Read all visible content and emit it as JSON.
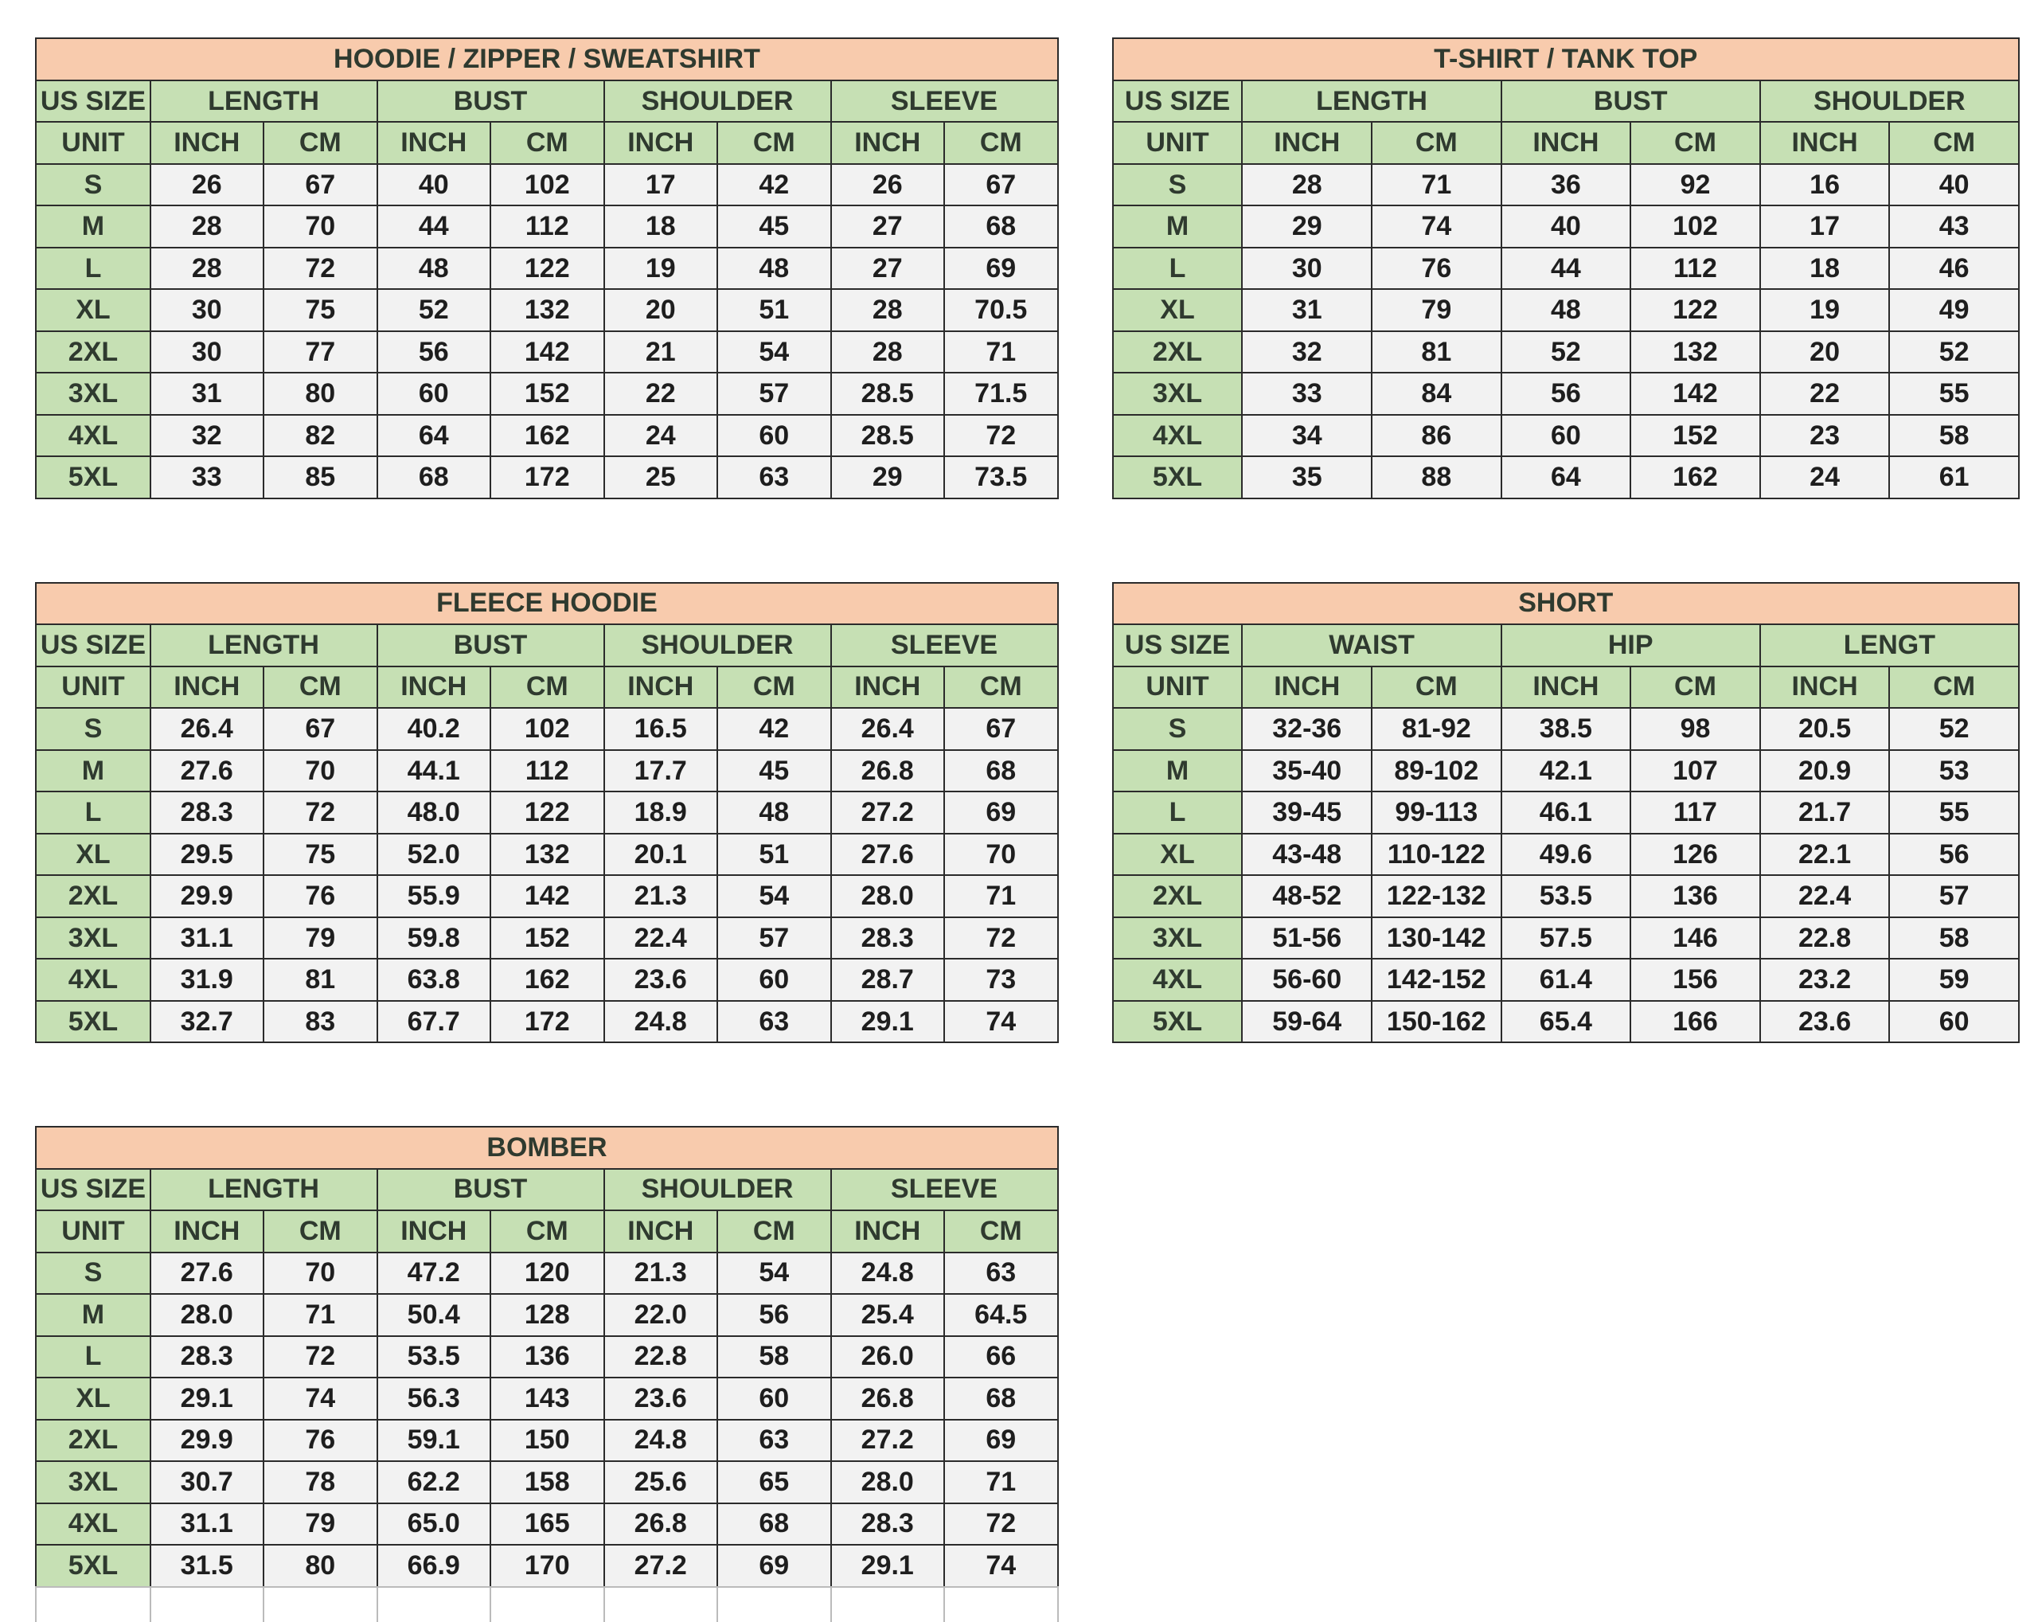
{
  "tables": [
    {
      "title": "HOODIE / ZIPPER / SWEATSHIRT",
      "size_header": "US SIZE",
      "unit_header": "UNIT",
      "groups": [
        "LENGTH",
        "BUST",
        "SHOULDER",
        "SLEEVE"
      ],
      "units": [
        "INCH",
        "CM",
        "INCH",
        "CM",
        "INCH",
        "CM",
        "INCH",
        "CM"
      ],
      "rows": [
        [
          "S",
          "26",
          "67",
          "40",
          "102",
          "17",
          "42",
          "26",
          "67"
        ],
        [
          "M",
          "28",
          "70",
          "44",
          "112",
          "18",
          "45",
          "27",
          "68"
        ],
        [
          "L",
          "28",
          "72",
          "48",
          "122",
          "19",
          "48",
          "27",
          "69"
        ],
        [
          "XL",
          "30",
          "75",
          "52",
          "132",
          "20",
          "51",
          "28",
          "70.5"
        ],
        [
          "2XL",
          "30",
          "77",
          "56",
          "142",
          "21",
          "54",
          "28",
          "71"
        ],
        [
          "3XL",
          "31",
          "80",
          "60",
          "152",
          "22",
          "57",
          "28.5",
          "71.5"
        ],
        [
          "4XL",
          "32",
          "82",
          "64",
          "162",
          "24",
          "60",
          "28.5",
          "72"
        ],
        [
          "5XL",
          "33",
          "85",
          "68",
          "172",
          "25",
          "63",
          "29",
          "73.5"
        ]
      ]
    },
    {
      "title": "T-SHIRT / TANK TOP",
      "size_header": "US SIZE",
      "unit_header": "UNIT",
      "groups": [
        "LENGTH",
        "BUST",
        "SHOULDER"
      ],
      "units": [
        "INCH",
        "CM",
        "INCH",
        "CM",
        "INCH",
        "CM"
      ],
      "rows": [
        [
          "S",
          "28",
          "71",
          "36",
          "92",
          "16",
          "40"
        ],
        [
          "M",
          "29",
          "74",
          "40",
          "102",
          "17",
          "43"
        ],
        [
          "L",
          "30",
          "76",
          "44",
          "112",
          "18",
          "46"
        ],
        [
          "XL",
          "31",
          "79",
          "48",
          "122",
          "19",
          "49"
        ],
        [
          "2XL",
          "32",
          "81",
          "52",
          "132",
          "20",
          "52"
        ],
        [
          "3XL",
          "33",
          "84",
          "56",
          "142",
          "22",
          "55"
        ],
        [
          "4XL",
          "34",
          "86",
          "60",
          "152",
          "23",
          "58"
        ],
        [
          "5XL",
          "35",
          "88",
          "64",
          "162",
          "24",
          "61"
        ]
      ]
    },
    {
      "title": "FLEECE HOODIE",
      "size_header": "US SIZE",
      "unit_header": "UNIT",
      "groups": [
        "LENGTH",
        "BUST",
        "SHOULDER",
        "SLEEVE"
      ],
      "units": [
        "INCH",
        "CM",
        "INCH",
        "CM",
        "INCH",
        "CM",
        "INCH",
        "CM"
      ],
      "rows": [
        [
          "S",
          "26.4",
          "67",
          "40.2",
          "102",
          "16.5",
          "42",
          "26.4",
          "67"
        ],
        [
          "M",
          "27.6",
          "70",
          "44.1",
          "112",
          "17.7",
          "45",
          "26.8",
          "68"
        ],
        [
          "L",
          "28.3",
          "72",
          "48.0",
          "122",
          "18.9",
          "48",
          "27.2",
          "69"
        ],
        [
          "XL",
          "29.5",
          "75",
          "52.0",
          "132",
          "20.1",
          "51",
          "27.6",
          "70"
        ],
        [
          "2XL",
          "29.9",
          "76",
          "55.9",
          "142",
          "21.3",
          "54",
          "28.0",
          "71"
        ],
        [
          "3XL",
          "31.1",
          "79",
          "59.8",
          "152",
          "22.4",
          "57",
          "28.3",
          "72"
        ],
        [
          "4XL",
          "31.9",
          "81",
          "63.8",
          "162",
          "23.6",
          "60",
          "28.7",
          "73"
        ],
        [
          "5XL",
          "32.7",
          "83",
          "67.7",
          "172",
          "24.8",
          "63",
          "29.1",
          "74"
        ]
      ]
    },
    {
      "title": "SHORT",
      "size_header": "US SIZE",
      "unit_header": "UNIT",
      "groups": [
        "WAIST",
        "HIP",
        "LENGT"
      ],
      "units": [
        "INCH",
        "CM",
        "INCH",
        "CM",
        "INCH",
        "CM"
      ],
      "rows": [
        [
          "S",
          "32-36",
          "81-92",
          "38.5",
          "98",
          "20.5",
          "52"
        ],
        [
          "M",
          "35-40",
          "89-102",
          "42.1",
          "107",
          "20.9",
          "53"
        ],
        [
          "L",
          "39-45",
          "99-113",
          "46.1",
          "117",
          "21.7",
          "55"
        ],
        [
          "XL",
          "43-48",
          "110-122",
          "49.6",
          "126",
          "22.1",
          "56"
        ],
        [
          "2XL",
          "48-52",
          "122-132",
          "53.5",
          "136",
          "22.4",
          "57"
        ],
        [
          "3XL",
          "51-56",
          "130-142",
          "57.5",
          "146",
          "22.8",
          "58"
        ],
        [
          "4XL",
          "56-60",
          "142-152",
          "61.4",
          "156",
          "23.2",
          "59"
        ],
        [
          "5XL",
          "59-64",
          "150-162",
          "65.4",
          "166",
          "23.6",
          "60"
        ]
      ]
    },
    {
      "title": "BOMBER",
      "size_header": "US SIZE",
      "unit_header": "UNIT",
      "groups": [
        "LENGTH",
        "BUST",
        "SHOULDER",
        "SLEEVE"
      ],
      "units": [
        "INCH",
        "CM",
        "INCH",
        "CM",
        "INCH",
        "CM",
        "INCH",
        "CM"
      ],
      "rows": [
        [
          "S",
          "27.6",
          "70",
          "47.2",
          "120",
          "21.3",
          "54",
          "24.8",
          "63"
        ],
        [
          "M",
          "28.0",
          "71",
          "50.4",
          "128",
          "22.0",
          "56",
          "25.4",
          "64.5"
        ],
        [
          "L",
          "28.3",
          "72",
          "53.5",
          "136",
          "22.8",
          "58",
          "26.0",
          "66"
        ],
        [
          "XL",
          "29.1",
          "74",
          "56.3",
          "143",
          "23.6",
          "60",
          "26.8",
          "68"
        ],
        [
          "2XL",
          "29.9",
          "76",
          "59.1",
          "150",
          "24.8",
          "63",
          "27.2",
          "69"
        ],
        [
          "3XL",
          "30.7",
          "78",
          "62.2",
          "158",
          "25.6",
          "65",
          "28.0",
          "71"
        ],
        [
          "4XL",
          "31.1",
          "79",
          "65.0",
          "165",
          "26.8",
          "68",
          "28.3",
          "72"
        ],
        [
          "5XL",
          "31.5",
          "80",
          "66.9",
          "170",
          "27.2",
          "69",
          "29.1",
          "74"
        ]
      ]
    }
  ]
}
